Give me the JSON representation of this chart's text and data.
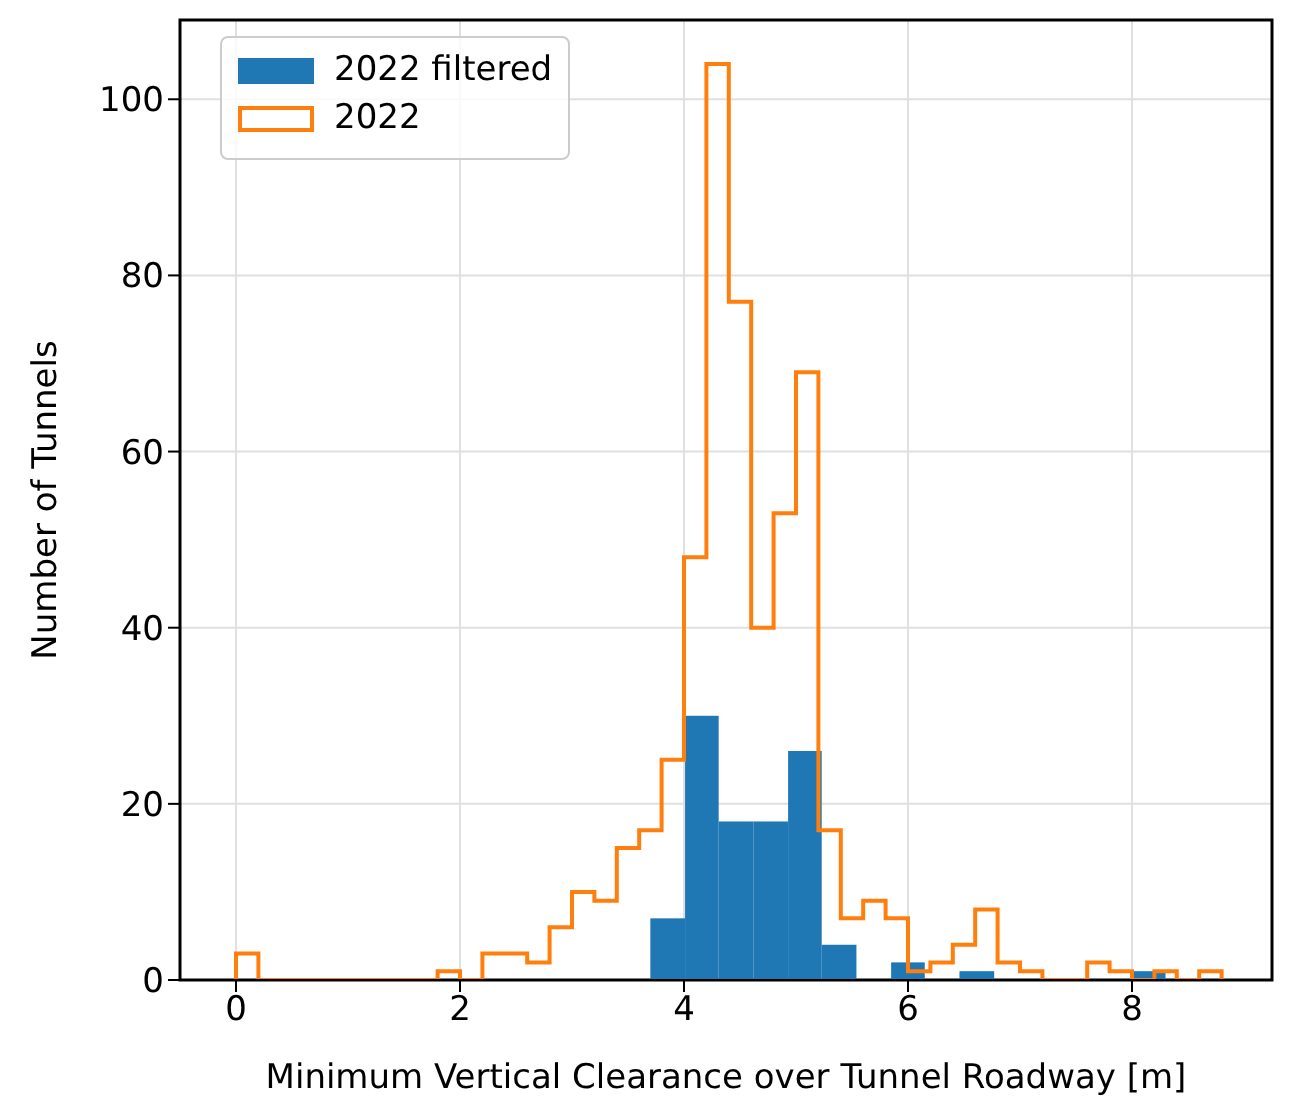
{
  "chart_data": {
    "type": "histogram",
    "xlabel": "Minimum Vertical Clearance over Tunnel Roadway [m]",
    "ylabel": "Number of Tunnels",
    "xlim": [
      -0.5,
      9.25
    ],
    "xticks": [
      0,
      2,
      4,
      6,
      8
    ],
    "ylim": [
      0,
      109
    ],
    "yticks": [
      0,
      20,
      40,
      60,
      80,
      100
    ],
    "grid": true,
    "legend": "top left",
    "series": [
      {
        "name": "2022 filtered",
        "color": "#1f77b4",
        "bins": [
          3.7,
          4.01,
          4.31,
          4.62,
          4.93,
          5.23,
          5.54,
          5.85,
          6.15,
          6.46,
          6.77,
          7.99,
          8.3
        ],
        "values": [
          7,
          30,
          18,
          18,
          26,
          4,
          0,
          2,
          0,
          1,
          0,
          1
        ]
      },
      {
        "name": "2022",
        "type": "step",
        "color": "#ff7f0e",
        "x": [
          0,
          0,
          0.2,
          0.4,
          0.6,
          0.8,
          1.0,
          1.2,
          1.4,
          1.6,
          1.8,
          2.0,
          2.2,
          2.4,
          2.6,
          2.8,
          3.0,
          3.2,
          3.4,
          3.6,
          3.8,
          4.0,
          4.2,
          4.4,
          4.6,
          4.8,
          5.0,
          5.2,
          5.4,
          5.6,
          5.8,
          6.0,
          6.2,
          6.4,
          6.6,
          6.8,
          7.0,
          7.2,
          7.4,
          7.6,
          7.8,
          8.0,
          8.2,
          8.4,
          8.6,
          8.8
        ],
        "values": [
          0,
          3,
          0,
          0,
          0,
          0,
          0,
          0,
          0,
          0,
          1,
          0,
          3,
          3,
          2,
          6,
          10,
          9,
          15,
          17,
          25,
          48,
          104,
          77,
          40,
          53,
          69,
          17,
          7,
          9,
          7,
          1,
          2,
          4,
          8,
          2,
          1,
          0,
          0,
          2,
          1,
          0,
          1,
          0,
          1,
          0
        ]
      }
    ]
  }
}
